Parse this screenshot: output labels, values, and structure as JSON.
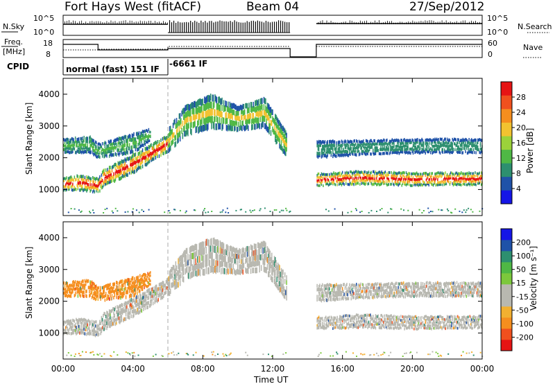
{
  "header": {
    "radar": "Fort Hays West (fitACF)",
    "beam": "Beam 04",
    "date": "27/Sep/2012"
  },
  "status_panels": {
    "nsky_label": "N.Sky",
    "nsky_ticks": [
      "10^5",
      "10^0"
    ],
    "nsearch_label": "N.Search",
    "freq_label_1": "Freq.",
    "freq_label_2": "[MHz]",
    "freq_ticks": [
      "18",
      "8"
    ],
    "nave_label": "Nave",
    "nave_ticks": [
      "60",
      "0"
    ],
    "cpid_label": "CPID",
    "cpid_modes": [
      {
        "name": "normal (fast) 151 IF",
        "start_ut": "00:00",
        "end_ut": "06:00"
      },
      {
        "name": "-6661 IF",
        "start_ut": "06:00",
        "end_ut": "13:00"
      }
    ]
  },
  "colors": {
    "power_scale": [
      "#1515e6",
      "#1f52a8",
      "#2d8f6f",
      "#4fb845",
      "#9bd23a",
      "#f2c230",
      "#f58e1e",
      "#f0501e",
      "#e61414"
    ],
    "velocity_scale": [
      "#e61414",
      "#f0501e",
      "#f58e1e",
      "#f2b030",
      "#b8b8b0",
      "#b8b8b0",
      "#7cc83c",
      "#4fb845",
      "#2d8f6f",
      "#1f52a8",
      "#1515e6"
    ],
    "ground_scatter": "#b8b8b0"
  },
  "chart_data": [
    {
      "type": "heatmap",
      "xlabel": "Time UT",
      "ylabel": "Slant Range [km]",
      "x_ticks": [
        "00:00",
        "04:00",
        "08:00",
        "12:00",
        "16:00",
        "20:00",
        "00:00"
      ],
      "xlim_hours": [
        0,
        24
      ],
      "y_ticks": [
        "1000",
        "2000",
        "3000",
        "4000"
      ],
      "ylim_km": [
        180,
        4500
      ],
      "colorbar": {
        "label": "Power [dB]",
        "ticks": [
          "28",
          "24",
          "20",
          "16",
          "12",
          "8",
          "4"
        ],
        "range": [
          0,
          32
        ]
      },
      "data_gap_hours": [
        13.0,
        14.5
      ],
      "mode_change_hour": 6.0,
      "bands": [
        {
          "t": [
            0.0,
            1.0,
            2.0,
            2.3,
            4.0,
            6.0
          ],
          "center_km": [
            1150,
            1200,
            1100,
            1350,
            1800,
            2450
          ],
          "width_km": [
            280,
            320,
            300,
            350,
            380,
            350
          ],
          "peak_db": 30
        },
        {
          "t": [
            0.0,
            1.5,
            2.0,
            4.0,
            5.0
          ],
          "center_km": [
            2350,
            2400,
            2200,
            2450,
            2700
          ],
          "width_km": [
            300,
            350,
            300,
            400,
            250
          ],
          "peak_db": 14
        },
        {
          "t": [
            6.0,
            7.0,
            8.5,
            10.0,
            11.5,
            12.8
          ],
          "center_km": [
            2550,
            3200,
            3500,
            3250,
            3450,
            2400
          ],
          "width_km": [
            500,
            600,
            700,
            500,
            600,
            500
          ],
          "peak_db": 18
        },
        {
          "t": [
            14.5,
            17.0,
            20.0,
            24.0
          ],
          "center_km": [
            1280,
            1350,
            1300,
            1320
          ],
          "width_km": [
            260,
            280,
            270,
            260
          ],
          "peak_db": 30
        },
        {
          "t": [
            14.5,
            17.0,
            20.0,
            24.0
          ],
          "center_km": [
            2250,
            2300,
            2350,
            2350
          ],
          "width_km": [
            350,
            300,
            300,
            300
          ],
          "peak_db": 10
        }
      ]
    },
    {
      "type": "heatmap",
      "xlabel": "Time UT",
      "ylabel": "Slant Range [km]",
      "x_ticks": [
        "00:00",
        "04:00",
        "08:00",
        "12:00",
        "16:00",
        "20:00",
        "00:00"
      ],
      "xlim_hours": [
        0,
        24
      ],
      "y_ticks": [
        "1000",
        "2000",
        "3000",
        "4000"
      ],
      "ylim_km": [
        180,
        4500
      ],
      "colorbar": {
        "label": "Velocity [m s⁻¹]",
        "ticks": [
          "200",
          "100",
          "50",
          "15",
          "-15",
          "-50",
          "-100",
          "-200"
        ]
      },
      "data_gap_hours": [
        13.0,
        14.5
      ],
      "mode_change_hour": 6.0,
      "bands": [
        {
          "t": [
            0.0,
            1.0,
            2.0,
            2.3,
            4.0,
            6.0
          ],
          "center_km": [
            1150,
            1200,
            1100,
            1350,
            1800,
            2450
          ],
          "width_km": [
            280,
            320,
            300,
            350,
            380,
            350
          ],
          "velocity": 0
        },
        {
          "t": [
            0.0,
            1.5,
            2.0,
            4.0,
            5.0
          ],
          "center_km": [
            2350,
            2400,
            2200,
            2450,
            2700
          ],
          "width_km": [
            300,
            350,
            300,
            400,
            250
          ],
          "velocity": -60
        },
        {
          "t": [
            6.0,
            7.0,
            8.5,
            10.0,
            11.5,
            12.8
          ],
          "center_km": [
            2550,
            3200,
            3500,
            3250,
            3450,
            2400
          ],
          "width_km": [
            500,
            600,
            700,
            500,
            600,
            500
          ],
          "velocity": 0
        },
        {
          "t": [
            14.5,
            17.0,
            20.0,
            24.0
          ],
          "center_km": [
            1280,
            1350,
            1300,
            1320
          ],
          "width_km": [
            260,
            280,
            270,
            260
          ],
          "velocity": 0
        },
        {
          "t": [
            14.5,
            17.0,
            20.0,
            24.0
          ],
          "center_km": [
            2250,
            2300,
            2350,
            2350
          ],
          "width_km": [
            350,
            300,
            300,
            300
          ],
          "velocity": 0
        }
      ]
    }
  ]
}
